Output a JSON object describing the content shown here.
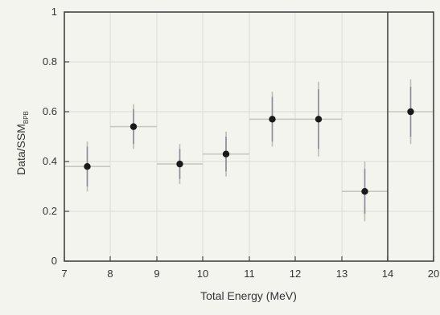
{
  "chart_data": {
    "type": "scatter",
    "xlabel": "Total Energy (MeV)",
    "ylabel": "Data/SSM",
    "ylabel_subscript": "BPB",
    "ylim": [
      0,
      1
    ],
    "yticks": [
      "0",
      "0.2",
      "0.4",
      "0.6",
      "0.8",
      "1"
    ],
    "xticks": [
      "7",
      "8",
      "9",
      "10",
      "11",
      "12",
      "13",
      "14",
      "20"
    ],
    "x_note": "axis is uniform from 7 to 14 MeV; final bin spans 14-20 MeV",
    "grid": true,
    "points": [
      {
        "x_low": 7,
        "x_high": 8,
        "y": 0.38,
        "stat_err": 0.08,
        "tot_err": 0.1
      },
      {
        "x_low": 8,
        "x_high": 9,
        "y": 0.54,
        "stat_err": 0.07,
        "tot_err": 0.09
      },
      {
        "x_low": 9,
        "x_high": 10,
        "y": 0.39,
        "stat_err": 0.06,
        "tot_err": 0.08
      },
      {
        "x_low": 10,
        "x_high": 11,
        "y": 0.43,
        "stat_err": 0.07,
        "tot_err": 0.09
      },
      {
        "x_low": 11,
        "x_high": 12,
        "y": 0.57,
        "stat_err": 0.09,
        "tot_err": 0.11
      },
      {
        "x_low": 12,
        "x_high": 13,
        "y": 0.57,
        "stat_err": 0.12,
        "tot_err": 0.15
      },
      {
        "x_low": 13,
        "x_high": 14,
        "y": 0.28,
        "stat_err": 0.09,
        "tot_err": 0.12
      },
      {
        "x_low": 14,
        "x_high": 20,
        "y": 0.6,
        "stat_err": 0.1,
        "tot_err": 0.13
      }
    ]
  }
}
